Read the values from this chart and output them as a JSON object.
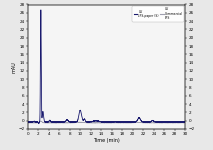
{
  "title": "",
  "xlabel": "Time (min)",
  "ylabel": "mAU",
  "xlim": [
    0,
    30
  ],
  "ylim": [
    -2,
    28
  ],
  "yticks": [
    -2,
    0,
    2,
    4,
    6,
    8,
    10,
    12,
    14,
    16,
    18,
    20,
    22,
    24,
    26,
    28
  ],
  "xticks": [
    0,
    2,
    4,
    6,
    8,
    10,
    12,
    14,
    16,
    18,
    20,
    22,
    24,
    26,
    28,
    30
  ],
  "line1_color": "#1a1a6e",
  "line2_color": "#a0a0b0",
  "legend_labels_blue": [
    "UV",
    "LPS-paper (S)"
  ],
  "legend_labels_gray": [
    "UV",
    "Commercial",
    "LPS"
  ],
  "background_color": "#e8e8e8",
  "plot_bg_color": "#f5f5f5"
}
